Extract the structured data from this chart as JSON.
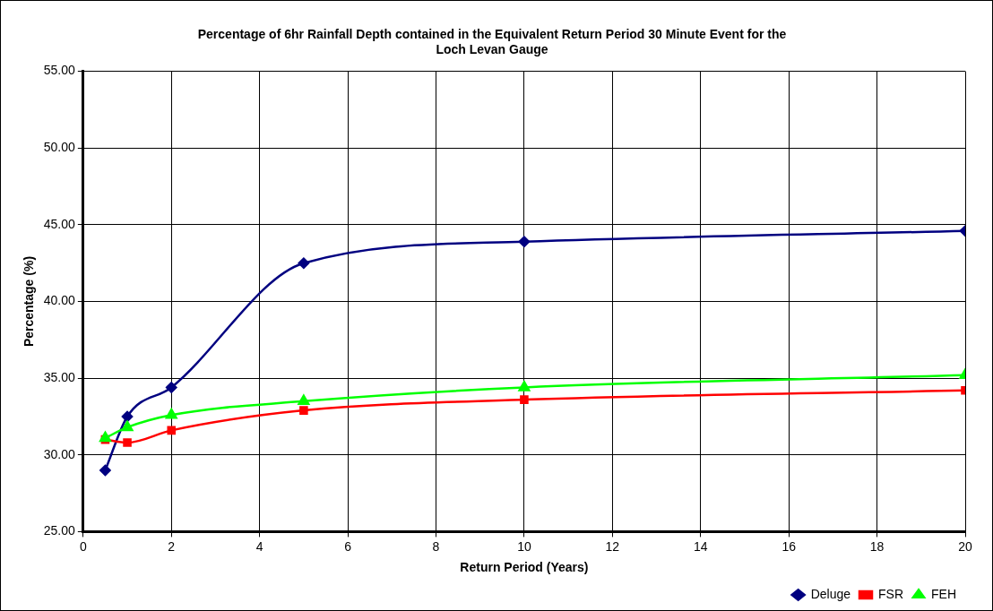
{
  "chart_data": {
    "type": "line",
    "title": [
      "Percentage of 6hr Rainfall Depth contained in the Equivalent Return Period 30 Minute Event for the",
      "Loch Levan Gauge"
    ],
    "xlabel": "Return Period (Years)",
    "ylabel": "Percentage (%)",
    "x": [
      0.5,
      1,
      2,
      5,
      10,
      20
    ],
    "series": [
      {
        "name": "Deluge",
        "color": "#000080",
        "marker": "diamond",
        "values": [
          29.0,
          32.5,
          34.4,
          42.5,
          43.9,
          44.6
        ]
      },
      {
        "name": "FSR",
        "color": "#ff0000",
        "marker": "square",
        "values": [
          31.0,
          30.8,
          31.6,
          32.9,
          33.6,
          34.2
        ]
      },
      {
        "name": "FEH",
        "color": "#00ff00",
        "marker": "triangle",
        "values": [
          31.1,
          31.8,
          32.6,
          33.5,
          34.4,
          35.2
        ]
      }
    ],
    "xlim": [
      0,
      20
    ],
    "xticks": [
      0,
      2,
      4,
      6,
      8,
      10,
      12,
      14,
      16,
      18,
      20
    ],
    "ylim": [
      25,
      55
    ],
    "yticks": [
      {
        "value": 25,
        "label": "25.00"
      },
      {
        "value": 30,
        "label": "30.00"
      },
      {
        "value": 35,
        "label": "35.00"
      },
      {
        "value": 40,
        "label": "40.00"
      },
      {
        "value": 45,
        "label": "45.00"
      },
      {
        "value": 50,
        "label": "50.00"
      },
      {
        "value": 55,
        "label": "55.00"
      }
    ],
    "grid": true,
    "legend": "bottom right",
    "line_style": "solid"
  }
}
